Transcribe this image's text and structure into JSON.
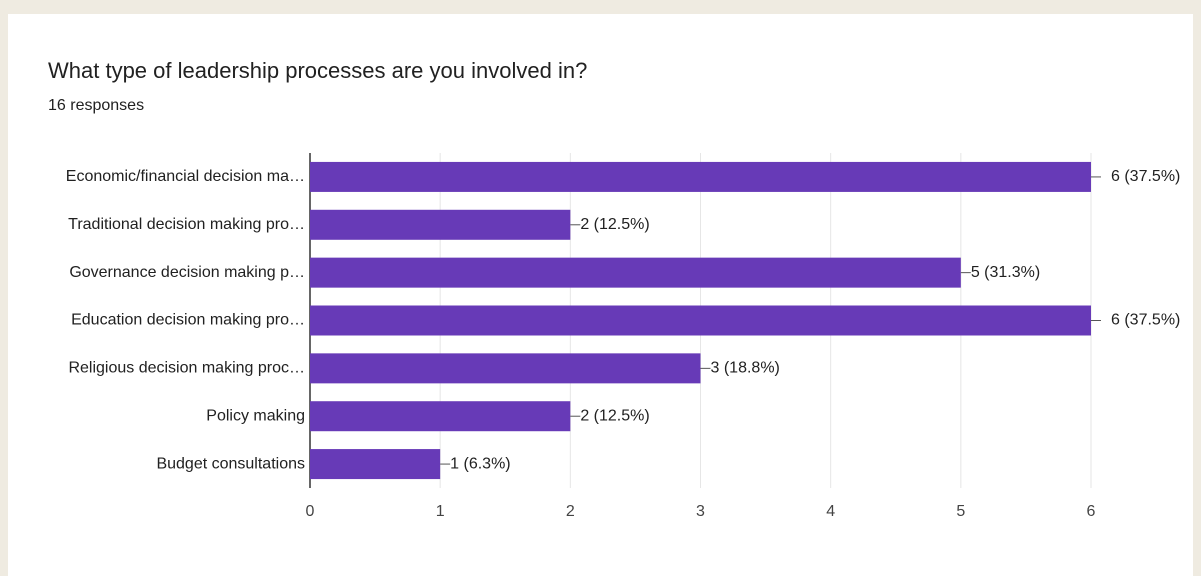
{
  "chart_data": {
    "type": "bar",
    "orientation": "horizontal",
    "title": "What type of leadership processes are you involved in?",
    "subtitle": "16 responses",
    "categories": [
      "Economic/financial decision ma…",
      "Traditional decision making pro…",
      "Governance decision making p…",
      "Education decision making pro…",
      "Religious decision making proc…",
      "Policy making",
      "Budget consultations"
    ],
    "values": [
      6,
      2,
      5,
      6,
      3,
      2,
      1
    ],
    "value_labels": [
      "6 (37.5%)",
      "2 (12.5%)",
      "5 (31.3%)",
      "6 (37.5%)",
      "3 (18.8%)",
      "2 (12.5%)",
      "1 (6.3%)"
    ],
    "color": "#673ab7",
    "xlim": [
      0,
      6
    ],
    "xticks": [
      0,
      1,
      2,
      3,
      4,
      5,
      6
    ],
    "grid": true
  }
}
